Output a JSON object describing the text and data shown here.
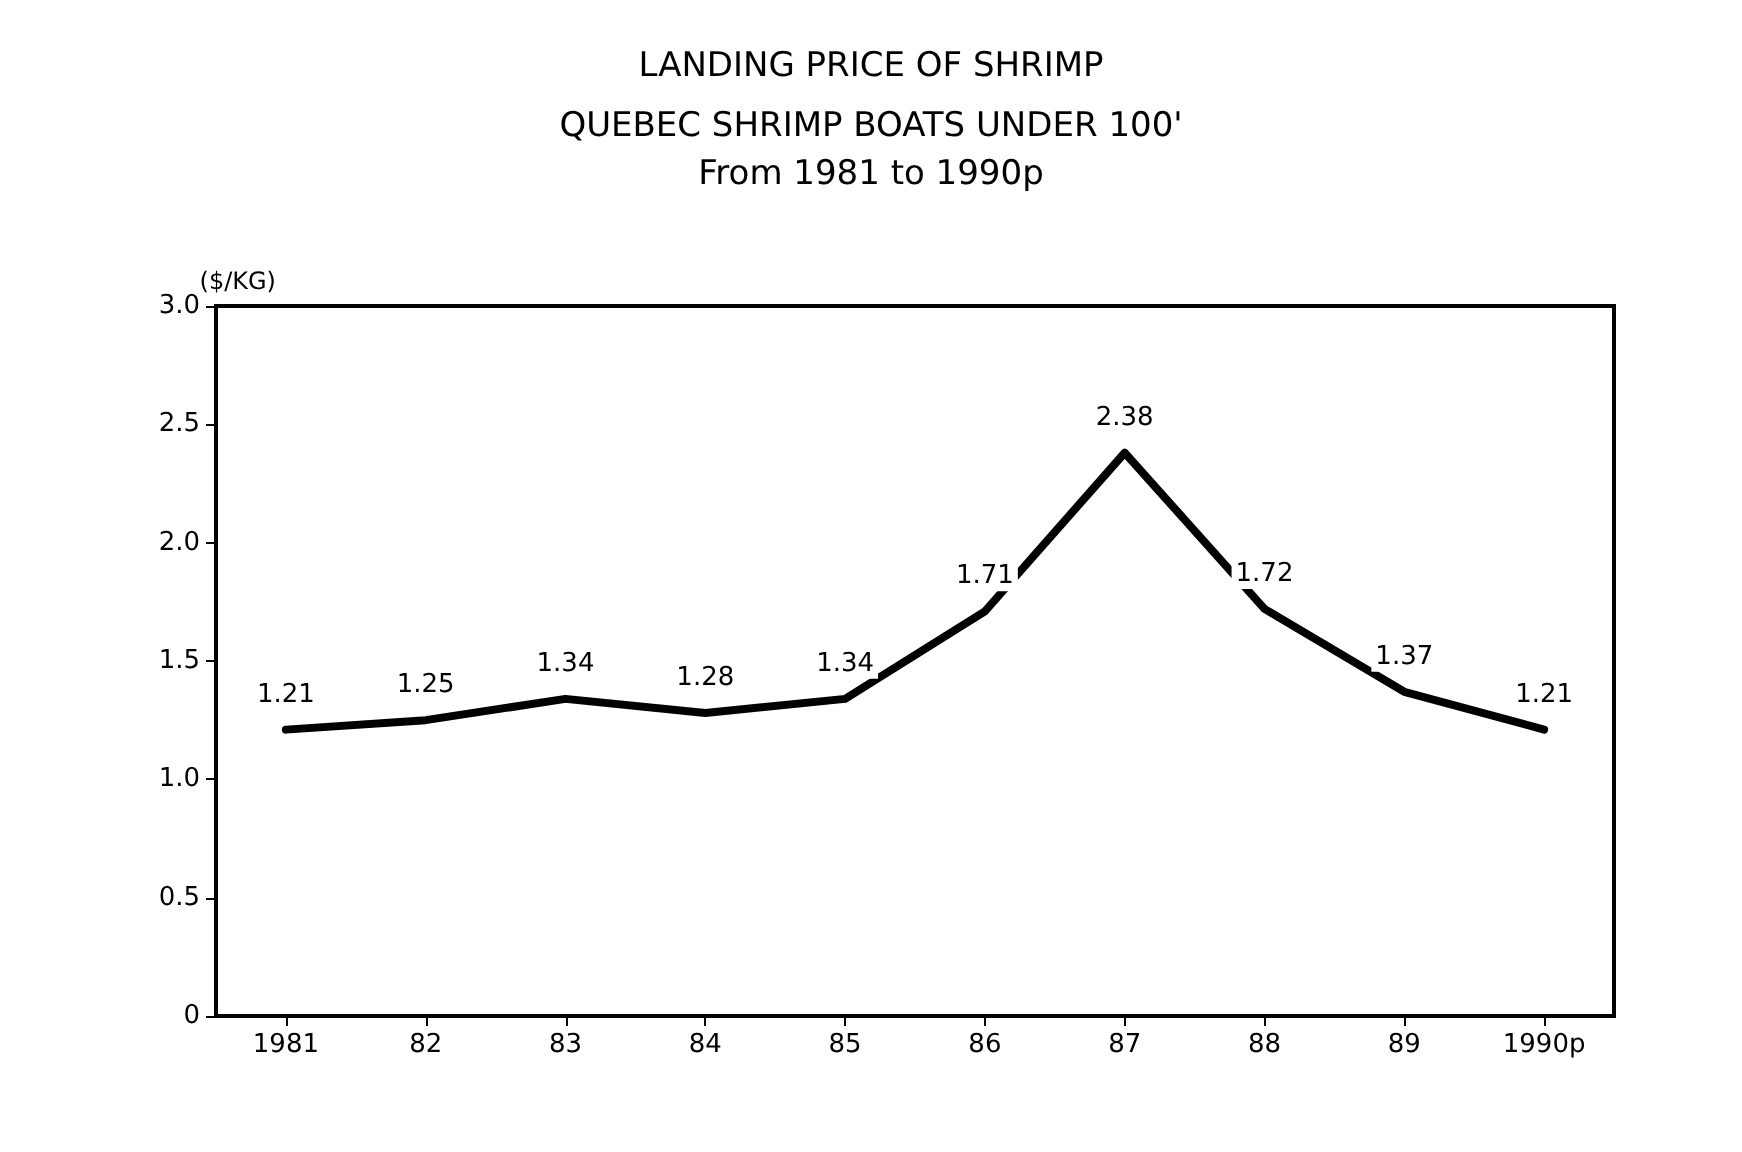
{
  "chart_data": {
    "type": "line",
    "title": "LANDING PRICE OF SHRIMP",
    "subtitle": "QUEBEC SHRIMP BOATS UNDER 100'\nFrom 1981 to 1990p",
    "ylabel": "($/KG)",
    "categories": [
      "1981",
      "82",
      "83",
      "84",
      "85",
      "86",
      "87",
      "88",
      "89",
      "1990p"
    ],
    "series": [
      {
        "color": "#000000",
        "values": [
          1.21,
          1.25,
          1.34,
          1.28,
          1.34,
          1.71,
          2.38,
          1.72,
          1.37,
          1.21
        ]
      }
    ],
    "ylim": [
      0,
      3
    ],
    "yticks": [
      0,
      0.5,
      {
        "value": 1,
        "label": "1.0"
      },
      1.5,
      {
        "value": 2,
        "label": "2.0"
      },
      2.5,
      {
        "value": 3,
        "label": "3.0"
      }
    ],
    "data_labels": true,
    "grid": false,
    "marker": "none",
    "line_style": "solid"
  }
}
